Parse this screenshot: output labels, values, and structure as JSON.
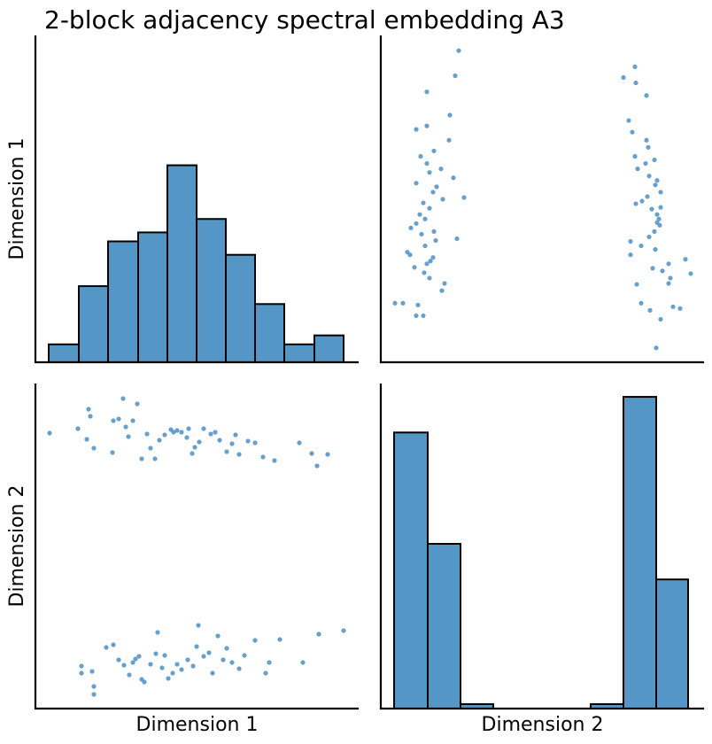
{
  "title": "2-block adjacency spectral embedding A3",
  "chart_data": [
    {
      "type": "histogram",
      "ylabel": "Dimension 1",
      "color": "#5497c6",
      "edgecolor": "#000000",
      "bins": [
        15,
        49,
        82,
        116,
        149,
        182,
        215,
        248,
        281,
        315,
        348
      ],
      "counts": [
        4,
        17,
        27,
        29,
        44,
        32,
        24,
        13,
        4,
        6
      ],
      "xlim": [
        0,
        365
      ],
      "ylim": [
        0,
        73
      ]
    },
    {
      "type": "scatter",
      "color": "#4d8fc4",
      "x": [
        311,
        316,
        304,
        338,
        330,
        294,
        289,
        325,
        327,
        350,
        318,
        307,
        325,
        344,
        282,
        310,
        294,
        282,
        303,
        309,
        315,
        312,
        314,
        312,
        306,
        316,
        288,
        295,
        301,
        316,
        310,
        312,
        303,
        290,
        299,
        309,
        287,
        302,
        300,
        284,
        280,
        300,
        288,
        274,
        287,
        48,
        40,
        42,
        25,
        16,
        69,
        72,
        55,
        49,
        38,
        52,
        56,
        59,
        33,
        30,
        50,
        62,
        86,
        46,
        60,
        34,
        40,
        50,
        44,
        55,
        48,
        70,
        94,
        59,
        63,
        40,
        82,
        55,
        68,
        52,
        45,
        60,
        77,
        40,
        52,
        78,
        52,
        84,
        88
      ],
      "y": [
        16,
        48,
        58,
        60,
        62,
        66,
        87,
        88,
        94,
        99,
        102,
        105,
        110,
        115,
        120,
        126,
        130,
        135,
        140,
        146,
        153,
        156,
        160,
        165,
        171,
        173,
        177,
        180,
        185,
        190,
        198,
        203,
        208,
        216,
        222,
        226,
        230,
        240,
        248,
        257,
        270,
        298,
        312,
        318,
        330,
        52,
        52,
        64,
        66,
        66,
        80,
        88,
        94,
        100,
        106,
        110,
        113,
        117,
        120,
        123,
        130,
        136,
        138,
        143,
        146,
        150,
        155,
        160,
        165,
        172,
        178,
        182,
        184,
        190,
        196,
        200,
        206,
        212,
        216,
        222,
        230,
        236,
        248,
        260,
        264,
        276,
        302,
        320,
        348
      ],
      "xlim": [
        0,
        365
      ],
      "ylim": [
        0,
        365
      ]
    },
    {
      "type": "scatter",
      "xlabel": "Dimension 1",
      "ylabel": "Dimension 2",
      "color": "#4d8fc4",
      "x": [
        16,
        48,
        58,
        60,
        62,
        66,
        87,
        88,
        94,
        99,
        102,
        105,
        110,
        115,
        120,
        126,
        130,
        135,
        140,
        146,
        153,
        156,
        160,
        165,
        171,
        173,
        177,
        180,
        185,
        190,
        198,
        203,
        208,
        216,
        222,
        226,
        230,
        240,
        248,
        257,
        270,
        298,
        312,
        318,
        330,
        52,
        52,
        64,
        66,
        66,
        80,
        88,
        94,
        100,
        106,
        110,
        113,
        117,
        120,
        123,
        130,
        136,
        138,
        143,
        146,
        150,
        155,
        160,
        165,
        172,
        178,
        182,
        184,
        190,
        196,
        200,
        206,
        212,
        216,
        222,
        230,
        236,
        248,
        260,
        264,
        276,
        302,
        320,
        348
      ],
      "y": [
        311,
        316,
        304,
        338,
        330,
        294,
        289,
        325,
        327,
        350,
        318,
        307,
        325,
        344,
        282,
        310,
        294,
        282,
        303,
        309,
        315,
        312,
        314,
        312,
        306,
        316,
        288,
        295,
        301,
        316,
        310,
        312,
        303,
        290,
        299,
        309,
        287,
        302,
        300,
        284,
        280,
        300,
        288,
        274,
        287,
        48,
        40,
        42,
        25,
        16,
        69,
        72,
        55,
        49,
        38,
        52,
        56,
        59,
        33,
        30,
        50,
        62,
        86,
        46,
        60,
        34,
        40,
        50,
        44,
        55,
        48,
        70,
        94,
        59,
        63,
        40,
        82,
        55,
        68,
        52,
        45,
        60,
        77,
        40,
        52,
        78,
        52,
        84,
        88
      ],
      "xlim": [
        0,
        365
      ],
      "ylim": [
        0,
        367
      ]
    },
    {
      "type": "histogram",
      "xlabel": "Dimension 2",
      "color": "#5497c6",
      "edgecolor": "#000000",
      "bins": [
        15,
        53,
        90,
        127,
        164,
        200,
        237,
        274,
        311,
        347
      ],
      "counts": [
        62,
        37,
        1,
        0,
        0,
        0,
        1,
        70,
        29
      ],
      "xlim": [
        0,
        365
      ],
      "ylim": [
        0,
        73
      ]
    }
  ]
}
